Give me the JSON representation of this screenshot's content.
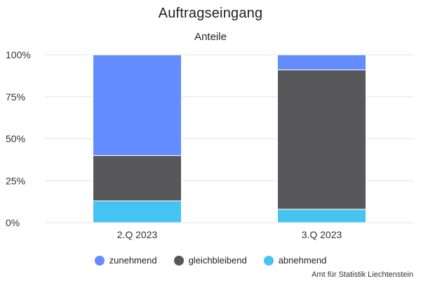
{
  "chart_data": {
    "type": "bar",
    "stacked": true,
    "title": "Auftragseingang",
    "subtitle": "Anteile",
    "categories": [
      "2.Q 2023",
      "3.Q 2023"
    ],
    "series": [
      {
        "name": "abnehmend",
        "color": "#46c3f0",
        "values": [
          13,
          8
        ]
      },
      {
        "name": "gleichbleibend",
        "color": "#58585a",
        "values": [
          27,
          83
        ]
      },
      {
        "name": "zunehmend",
        "color": "#638cff",
        "values": [
          60,
          9
        ]
      }
    ],
    "legend_order": [
      "zunehmend",
      "gleichbleibend",
      "abnehmend"
    ],
    "ylim": [
      0,
      100
    ],
    "yticks": [
      0,
      25,
      50,
      75,
      100
    ],
    "ytick_labels": [
      "0%",
      "25%",
      "50%",
      "75%",
      "100%"
    ],
    "grid": true,
    "legend_position": "bottom"
  },
  "credit": "Amt für Statistik Liechtenstein"
}
